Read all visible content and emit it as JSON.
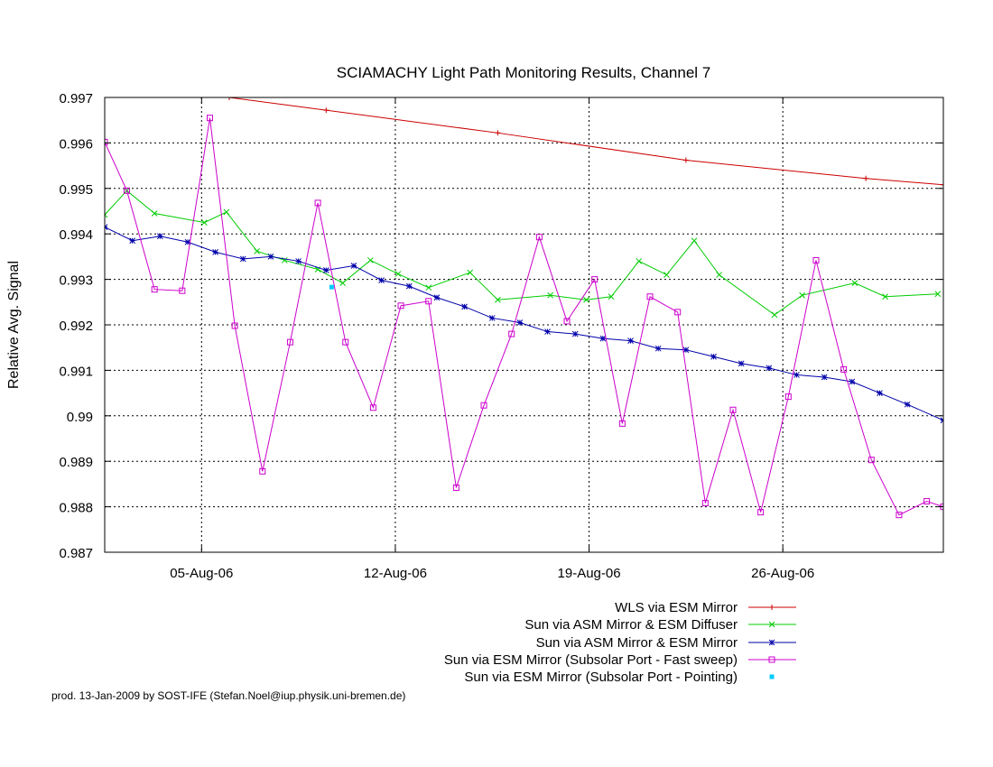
{
  "chart_data": {
    "type": "line",
    "title": "SCIAMACHY Light Path Monitoring Results, Channel 7",
    "xlabel": "",
    "ylabel": "Relative Avg. Signal",
    "x_unit": "days in Aug 2006",
    "xlim": [
      1.5,
      31.8
    ],
    "ylim": [
      0.987,
      0.997
    ],
    "x_ticks": [
      {
        "value": 5.0,
        "label": "05-Aug-06"
      },
      {
        "value": 12.0,
        "label": "12-Aug-06"
      },
      {
        "value": 19.0,
        "label": "19-Aug-06"
      },
      {
        "value": 26.0,
        "label": "26-Aug-06"
      }
    ],
    "y_ticks": [
      {
        "value": 0.987,
        "label": "0.987"
      },
      {
        "value": 0.988,
        "label": "0.988"
      },
      {
        "value": 0.989,
        "label": "0.989"
      },
      {
        "value": 0.99,
        "label": "0.99"
      },
      {
        "value": 0.991,
        "label": "0.991"
      },
      {
        "value": 0.992,
        "label": "0.992"
      },
      {
        "value": 0.993,
        "label": "0.993"
      },
      {
        "value": 0.994,
        "label": "0.994"
      },
      {
        "value": 0.995,
        "label": "0.995"
      },
      {
        "value": 0.996,
        "label": "0.996"
      },
      {
        "value": 0.997,
        "label": "0.997"
      }
    ],
    "grid": true,
    "legend_position": "bottom-right",
    "series": [
      {
        "name": "WLS via ESM Mirror",
        "color": "#cc0000",
        "marker": "plus",
        "x": [
          6.0,
          9.5,
          15.7,
          22.5,
          29.0,
          31.8
        ],
        "y": [
          0.997,
          0.99672,
          0.99622,
          0.99562,
          0.99522,
          0.99508
        ]
      },
      {
        "name": "Sun via ASM Mirror & ESM Diffuser",
        "color": "#00cc00",
        "marker": "cross",
        "x": [
          1.5,
          2.3,
          3.3,
          5.1,
          5.9,
          7.0,
          8.0,
          9.2,
          10.1,
          11.1,
          12.1,
          13.2,
          14.7,
          15.7,
          17.6,
          18.9,
          19.8,
          20.8,
          21.8,
          22.8,
          23.7,
          25.7,
          26.7,
          28.6,
          29.7,
          31.6
        ],
        "y": [
          0.99442,
          0.99495,
          0.99445,
          0.99425,
          0.99448,
          0.99362,
          0.99342,
          0.99322,
          0.99292,
          0.99342,
          0.99312,
          0.99282,
          0.99315,
          0.99255,
          0.99265,
          0.99255,
          0.99262,
          0.9934,
          0.9931,
          0.99385,
          0.9931,
          0.99222,
          0.99265,
          0.99292,
          0.99262,
          0.99268
        ]
      },
      {
        "name": "Sun via ASM Mirror & ESM Mirror",
        "color": "#0000aa",
        "marker": "star",
        "x": [
          1.5,
          2.5,
          3.5,
          4.5,
          5.5,
          6.5,
          7.5,
          8.5,
          9.5,
          10.5,
          11.5,
          12.5,
          13.5,
          14.5,
          15.5,
          16.5,
          17.5,
          18.5,
          19.5,
          20.5,
          21.5,
          22.5,
          23.5,
          24.5,
          25.5,
          26.5,
          27.5,
          28.5,
          29.5,
          30.5,
          31.8
        ],
        "y": [
          0.99415,
          0.99385,
          0.99395,
          0.99382,
          0.9936,
          0.99345,
          0.9935,
          0.9934,
          0.9932,
          0.9933,
          0.99298,
          0.99285,
          0.9926,
          0.9924,
          0.99215,
          0.99205,
          0.99185,
          0.9918,
          0.9917,
          0.99165,
          0.99148,
          0.99145,
          0.9913,
          0.99115,
          0.99105,
          0.9909,
          0.99085,
          0.99075,
          0.9905,
          0.99025,
          0.9899
        ]
      },
      {
        "name": "Sun via ESM Mirror (Subsolar Port - Fast sweep)",
        "color": "#cc00cc",
        "marker": "square",
        "x": [
          1.5,
          2.3,
          3.3,
          4.3,
          5.3,
          6.2,
          7.2,
          8.2,
          9.2,
          10.2,
          11.2,
          12.2,
          13.2,
          14.2,
          15.2,
          16.2,
          17.2,
          18.2,
          19.2,
          20.2,
          21.2,
          22.2,
          23.2,
          24.2,
          25.2,
          26.2,
          27.2,
          28.2,
          29.2,
          30.2,
          31.2,
          31.8
        ],
        "y": [
          0.99602,
          0.99495,
          0.99278,
          0.99275,
          0.99655,
          0.99198,
          0.98878,
          0.99162,
          0.99468,
          0.99162,
          0.99018,
          0.99242,
          0.99252,
          0.98842,
          0.99023,
          0.9918,
          0.99393,
          0.99208,
          0.993,
          0.98983,
          0.99262,
          0.99228,
          0.98808,
          0.99013,
          0.98788,
          0.99042,
          0.99342,
          0.99102,
          0.98903,
          0.98782,
          0.98812,
          0.988
        ]
      },
      {
        "name": "Sun via ESM Mirror (Subsolar Port - Pointing)",
        "color": "#00ccff",
        "marker": "dot",
        "x": [
          9.7
        ],
        "y": [
          0.99283
        ]
      }
    ]
  },
  "footer_text": "prod. 13-Jan-2009 by SOST-IFE (Stefan.Noel@iup.physik.uni-bremen.de)"
}
